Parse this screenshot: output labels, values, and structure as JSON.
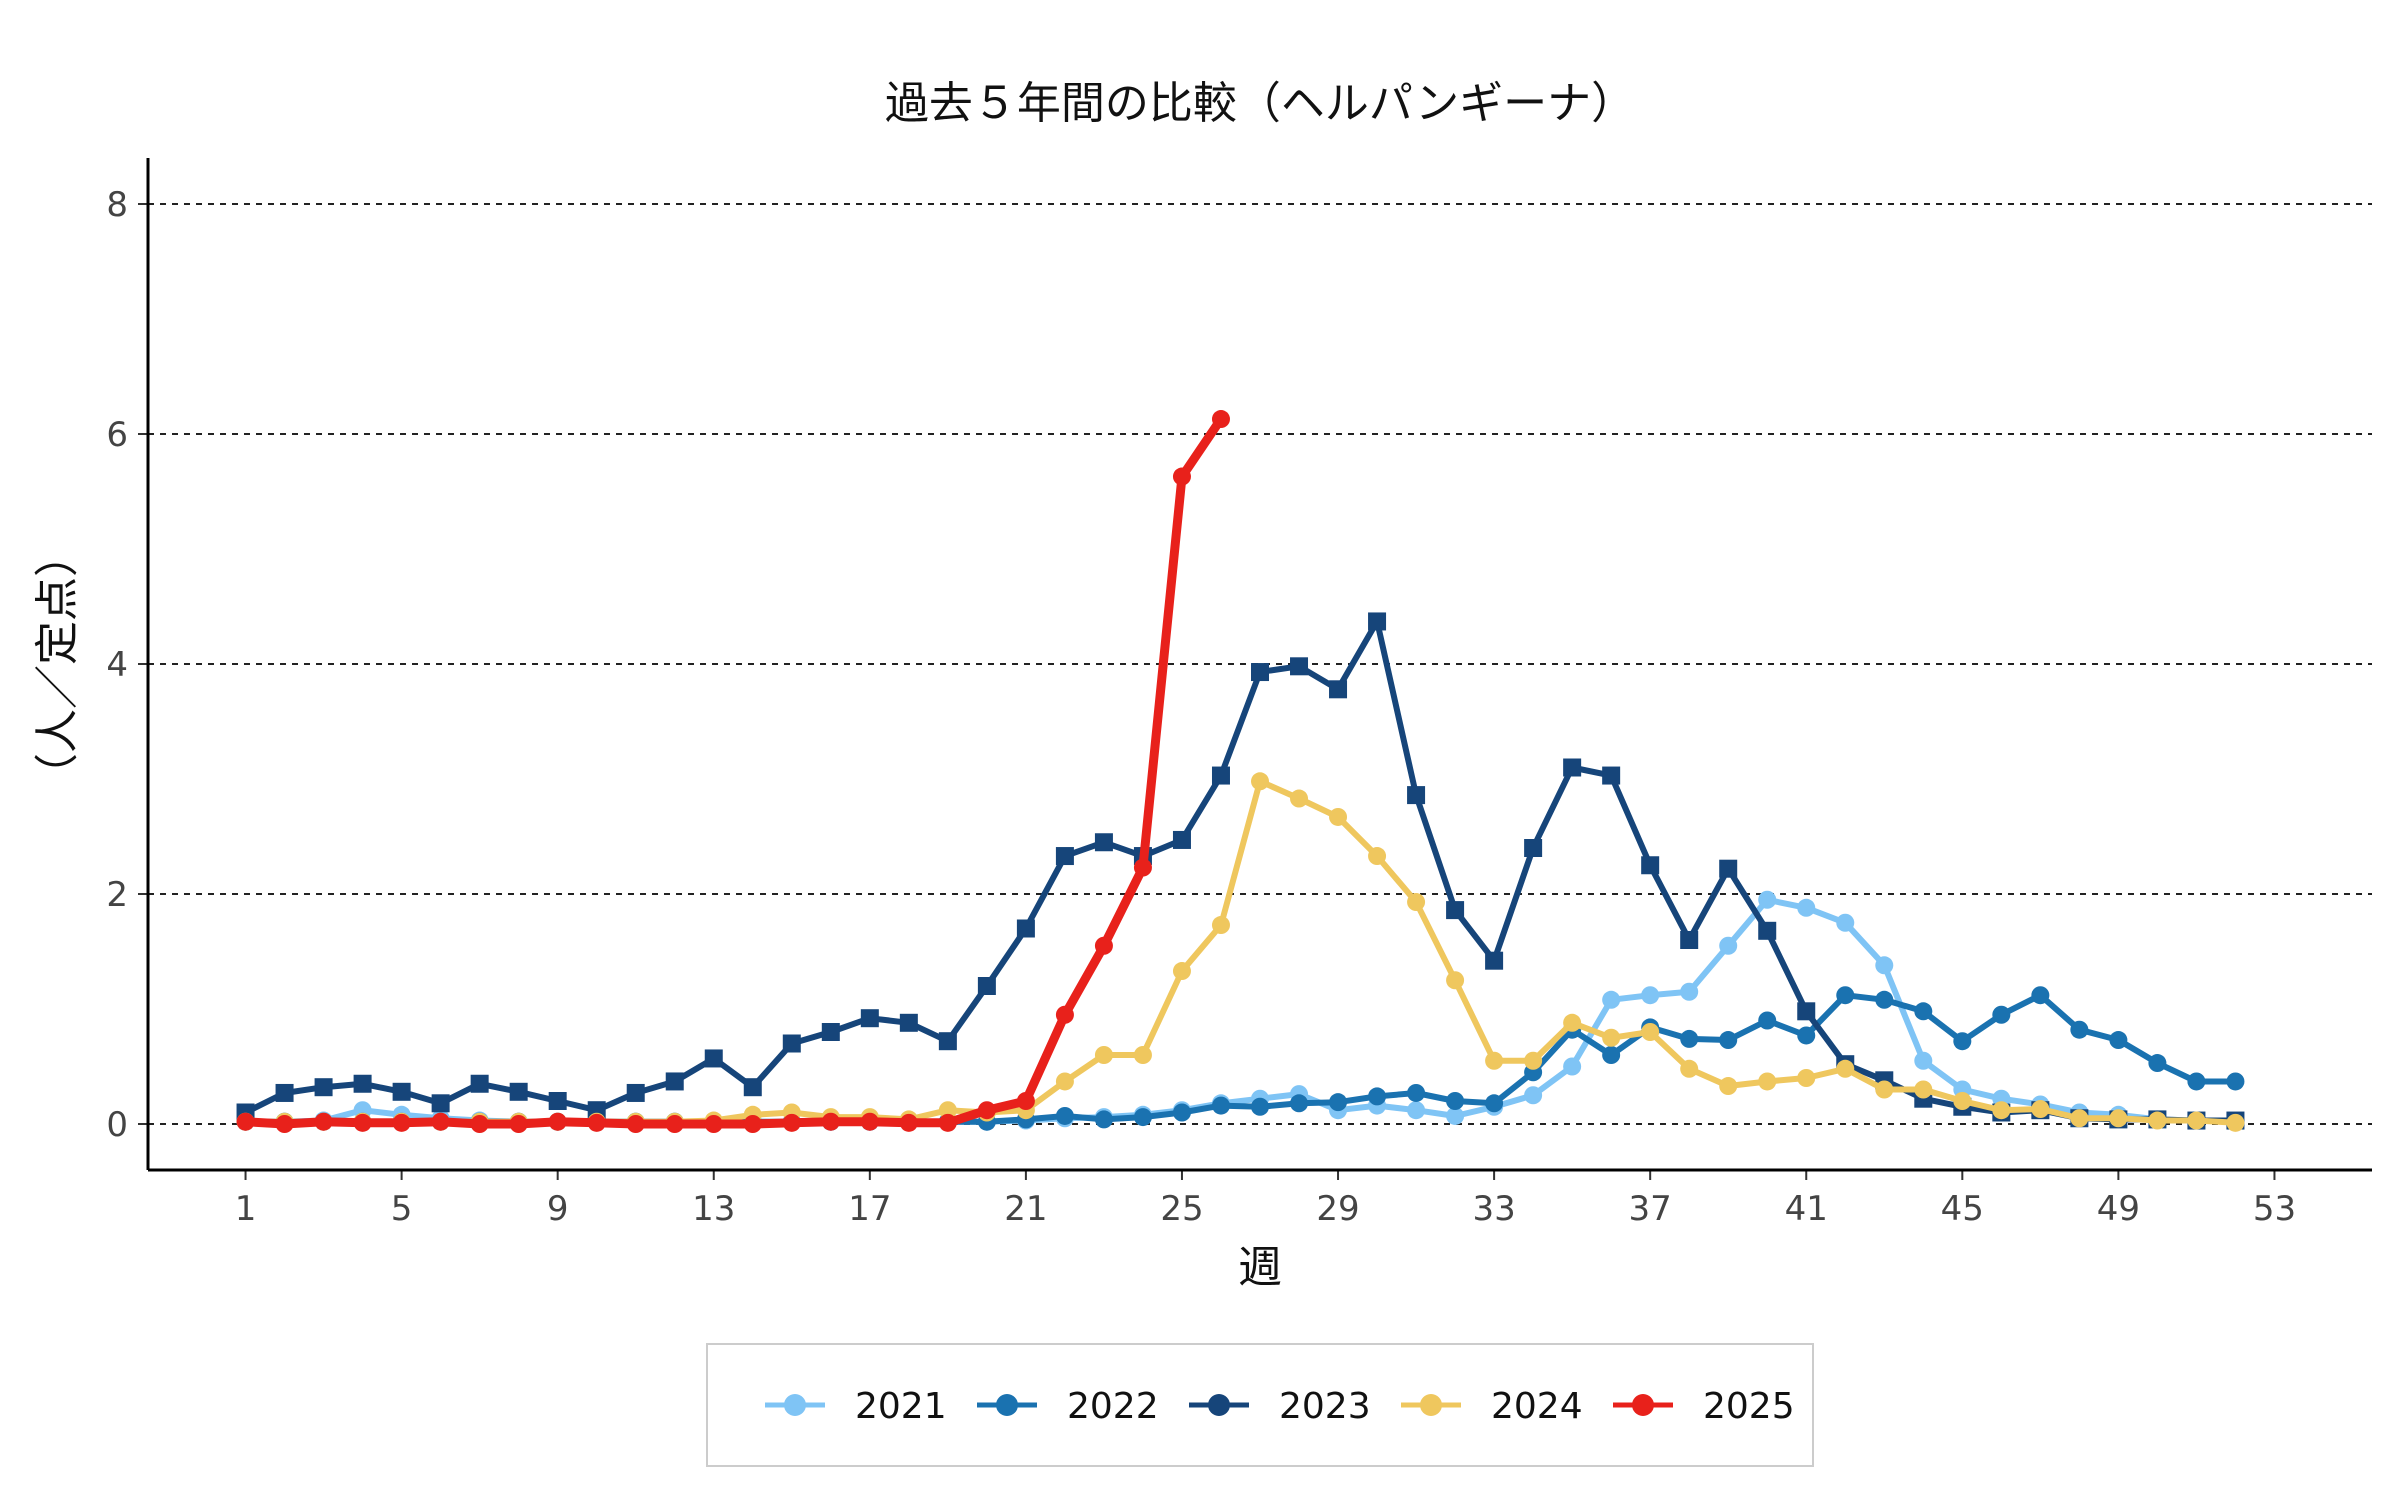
{
  "chart_data": {
    "type": "line",
    "title": "過去５年間の比較（ヘルパンギーナ）",
    "xlabel": "週",
    "ylabel": "（人／定点）",
    "xlim": [
      -1.5,
      55.5
    ],
    "ylim": [
      -0.4,
      8.4
    ],
    "x_ticks": [
      1,
      5,
      9,
      13,
      17,
      21,
      25,
      29,
      33,
      37,
      41,
      45,
      49,
      53
    ],
    "y_ticks": [
      0,
      2,
      4,
      6,
      8
    ],
    "grid": "horizontal dashed",
    "legend_position": "bottom",
    "series": [
      {
        "name": "2021",
        "color": "#7fc4f5",
        "marker": "circle",
        "x": [
          1,
          2,
          3,
          4,
          5,
          6,
          7,
          8,
          9,
          10,
          11,
          12,
          13,
          14,
          15,
          16,
          17,
          18,
          19,
          20,
          21,
          22,
          23,
          24,
          25,
          26,
          27,
          28,
          29,
          30,
          31,
          32,
          33,
          34,
          35,
          36,
          37,
          38,
          39,
          40,
          41,
          42,
          43,
          44,
          45,
          46,
          47,
          48,
          49,
          50,
          51,
          52
        ],
        "values": [
          0.02,
          0.02,
          0.03,
          0.12,
          0.08,
          0.05,
          0.03,
          0.02,
          0.02,
          0.02,
          0.02,
          0.02,
          0.01,
          0.01,
          0.02,
          0.02,
          0.02,
          0.02,
          0.02,
          0.02,
          0.03,
          0.05,
          0.06,
          0.08,
          0.12,
          0.18,
          0.22,
          0.26,
          0.12,
          0.16,
          0.12,
          0.07,
          0.15,
          0.25,
          0.5,
          1.08,
          1.12,
          1.15,
          1.55,
          1.95,
          1.88,
          1.75,
          1.38,
          0.55,
          0.3,
          0.22,
          0.17,
          0.1,
          0.08,
          0.04,
          0.03,
          0.02
        ]
      },
      {
        "name": "2022",
        "color": "#1a72b0",
        "marker": "circle",
        "x": [
          1,
          2,
          3,
          4,
          5,
          6,
          7,
          8,
          9,
          10,
          11,
          12,
          13,
          14,
          15,
          16,
          17,
          18,
          19,
          20,
          21,
          22,
          23,
          24,
          25,
          26,
          27,
          28,
          29,
          30,
          31,
          32,
          33,
          34,
          35,
          36,
          37,
          38,
          39,
          40,
          41,
          42,
          43,
          44,
          45,
          46,
          47,
          48,
          49,
          50,
          51,
          52
        ],
        "values": [
          0.02,
          0.02,
          0.02,
          0.02,
          0.02,
          0.02,
          0.02,
          0.02,
          0.02,
          0.02,
          0.02,
          0.02,
          0.02,
          0.02,
          0.02,
          0.02,
          0.02,
          0.02,
          0.02,
          0.02,
          0.04,
          0.07,
          0.04,
          0.06,
          0.1,
          0.16,
          0.15,
          0.18,
          0.19,
          0.24,
          0.27,
          0.2,
          0.18,
          0.45,
          0.82,
          0.6,
          0.84,
          0.74,
          0.73,
          0.9,
          0.77,
          1.12,
          1.08,
          0.98,
          0.72,
          0.95,
          1.12,
          0.82,
          0.73,
          0.53,
          0.37,
          0.37
        ]
      },
      {
        "name": "2023",
        "color": "#16457a",
        "marker": "square",
        "x": [
          1,
          2,
          3,
          4,
          5,
          6,
          7,
          8,
          9,
          10,
          11,
          12,
          13,
          14,
          15,
          16,
          17,
          18,
          19,
          20,
          21,
          22,
          23,
          24,
          25,
          26,
          27,
          28,
          29,
          30,
          31,
          32,
          33,
          34,
          35,
          36,
          37,
          38,
          39,
          40,
          41,
          42,
          43,
          44,
          45,
          46,
          47,
          48,
          49,
          50,
          51,
          52
        ],
        "values": [
          0.1,
          0.27,
          0.32,
          0.35,
          0.28,
          0.18,
          0.35,
          0.28,
          0.2,
          0.12,
          0.27,
          0.37,
          0.57,
          0.32,
          0.7,
          0.8,
          0.92,
          0.88,
          0.72,
          1.2,
          1.7,
          2.33,
          2.45,
          2.33,
          2.47,
          3.03,
          3.93,
          3.98,
          3.78,
          4.37,
          2.86,
          1.86,
          1.42,
          2.4,
          3.1,
          3.03,
          2.25,
          1.6,
          2.22,
          1.68,
          0.98,
          0.52,
          0.38,
          0.22,
          0.15,
          0.1,
          0.12,
          0.05,
          0.04,
          0.04,
          0.03,
          0.03
        ]
      },
      {
        "name": "2024",
        "color": "#efc75e",
        "marker": "circle",
        "x": [
          1,
          2,
          3,
          4,
          5,
          6,
          7,
          8,
          9,
          10,
          11,
          12,
          13,
          14,
          15,
          16,
          17,
          18,
          19,
          20,
          21,
          22,
          23,
          24,
          25,
          26,
          27,
          28,
          29,
          30,
          31,
          32,
          33,
          34,
          35,
          36,
          37,
          38,
          39,
          40,
          41,
          42,
          43,
          44,
          45,
          46,
          47,
          48,
          49,
          50,
          51,
          52
        ],
        "values": [
          0.02,
          0.02,
          0.02,
          0.02,
          0.02,
          0.02,
          0.02,
          0.02,
          0.02,
          0.02,
          0.02,
          0.02,
          0.03,
          0.08,
          0.1,
          0.06,
          0.06,
          0.04,
          0.12,
          0.1,
          0.12,
          0.37,
          0.6,
          0.6,
          1.33,
          1.73,
          2.98,
          2.83,
          2.67,
          2.33,
          1.93,
          1.25,
          0.55,
          0.55,
          0.88,
          0.75,
          0.8,
          0.48,
          0.33,
          0.37,
          0.4,
          0.48,
          0.3,
          0.3,
          0.2,
          0.12,
          0.13,
          0.05,
          0.05,
          0.03,
          0.03,
          0.01
        ]
      },
      {
        "name": "2025",
        "color": "#e8211b",
        "marker": "circle",
        "x": [
          1,
          2,
          3,
          4,
          5,
          6,
          7,
          8,
          9,
          10,
          11,
          12,
          13,
          14,
          15,
          16,
          17,
          18,
          19,
          20,
          21,
          22,
          23,
          24,
          25,
          26
        ],
        "values": [
          0.02,
          0.0,
          0.02,
          0.01,
          0.01,
          0.02,
          0.0,
          0.0,
          0.02,
          0.01,
          0.0,
          0.0,
          0.0,
          0.0,
          0.01,
          0.02,
          0.02,
          0.01,
          0.01,
          0.12,
          0.2,
          0.95,
          1.55,
          2.23,
          5.63,
          6.13
        ]
      }
    ]
  }
}
